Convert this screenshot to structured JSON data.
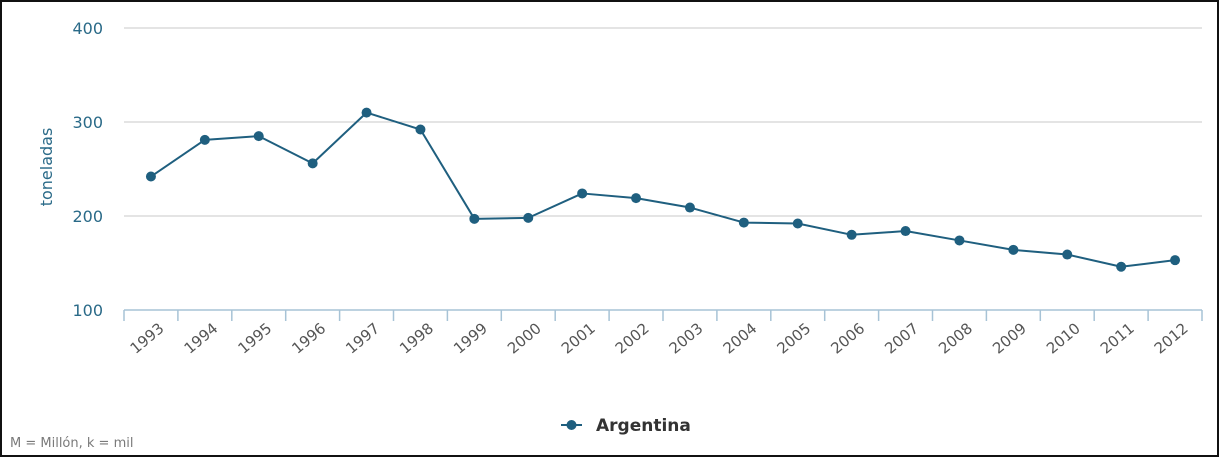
{
  "chart_data": {
    "type": "line",
    "ylabel": "toneladas",
    "xlabel": "",
    "ylim": [
      100,
      400
    ],
    "yticks": [
      100,
      200,
      300,
      400
    ],
    "grid": true,
    "legend_position": "bottom-center",
    "categories": [
      "1993",
      "1994",
      "1995",
      "1996",
      "1997",
      "1998",
      "1999",
      "2000",
      "2001",
      "2002",
      "2003",
      "2004",
      "2005",
      "2006",
      "2007",
      "2008",
      "2009",
      "2010",
      "2011",
      "2012"
    ],
    "series": [
      {
        "name": "Argentina",
        "color": "#1f5f7f",
        "values": [
          242,
          281,
          285,
          256,
          310,
          292,
          197,
          198,
          224,
          219,
          209,
          193,
          192,
          180,
          184,
          174,
          164,
          159,
          146,
          153
        ]
      }
    ]
  },
  "footnote": "M = Millón, k = mil",
  "colors": {
    "axis_text": "#2a6a88",
    "tick_text": "#555555",
    "grid": "#c8c8c8",
    "axis_line": "#a7c3d6"
  }
}
